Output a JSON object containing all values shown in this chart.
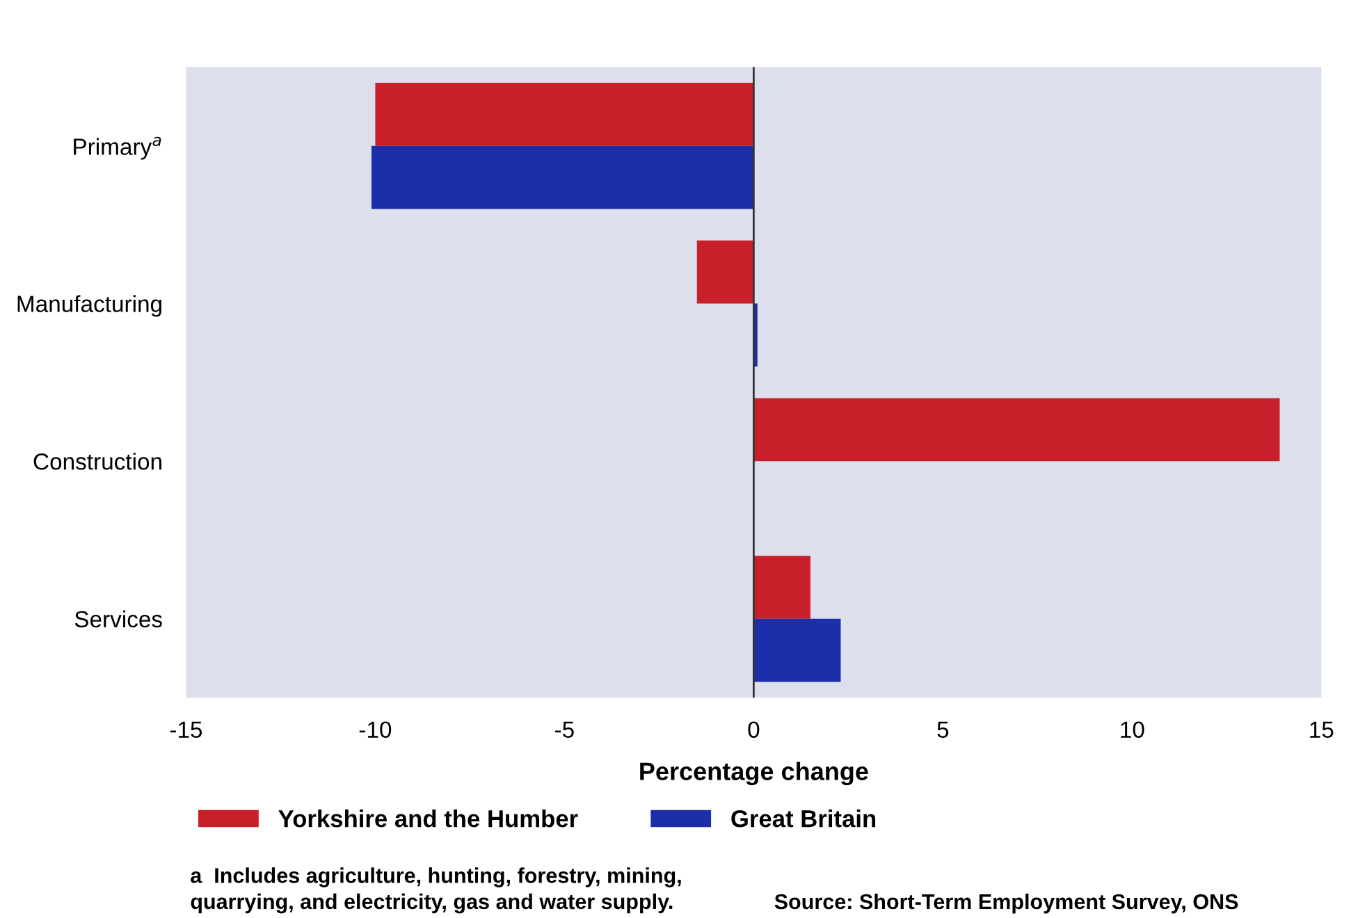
{
  "chart_data": {
    "type": "bar",
    "orientation": "horizontal",
    "xlabel": "Percentage change",
    "categories": [
      "Primary$^{a}$",
      "Manufacturing",
      "Construction",
      "Services"
    ],
    "series": [
      {
        "name": "Yorkshire and the Humber",
        "color": "#c8202a",
        "values": [
          -10.0,
          -1.5,
          13.9,
          1.5
        ]
      },
      {
        "name": "Great Britain",
        "color": "#1a2fa8",
        "values": [
          -10.1,
          0.1,
          0.0,
          2.3
        ]
      }
    ],
    "xlim": [
      -15,
      15
    ],
    "xticks": [
      -15,
      -10,
      -5,
      0,
      5,
      10,
      15
    ],
    "ref_lines": [
      {
        "axis": "x",
        "value": 0,
        "color": "#333333"
      }
    ],
    "grid": false,
    "legend": "bottom left",
    "annotations": [
      "a  Includes agriculture, hunting, forestry, mining,\nquarrying, and electricity, gas and water supply.",
      "Source: Short-Term Employment Survey, ONS"
    ]
  }
}
